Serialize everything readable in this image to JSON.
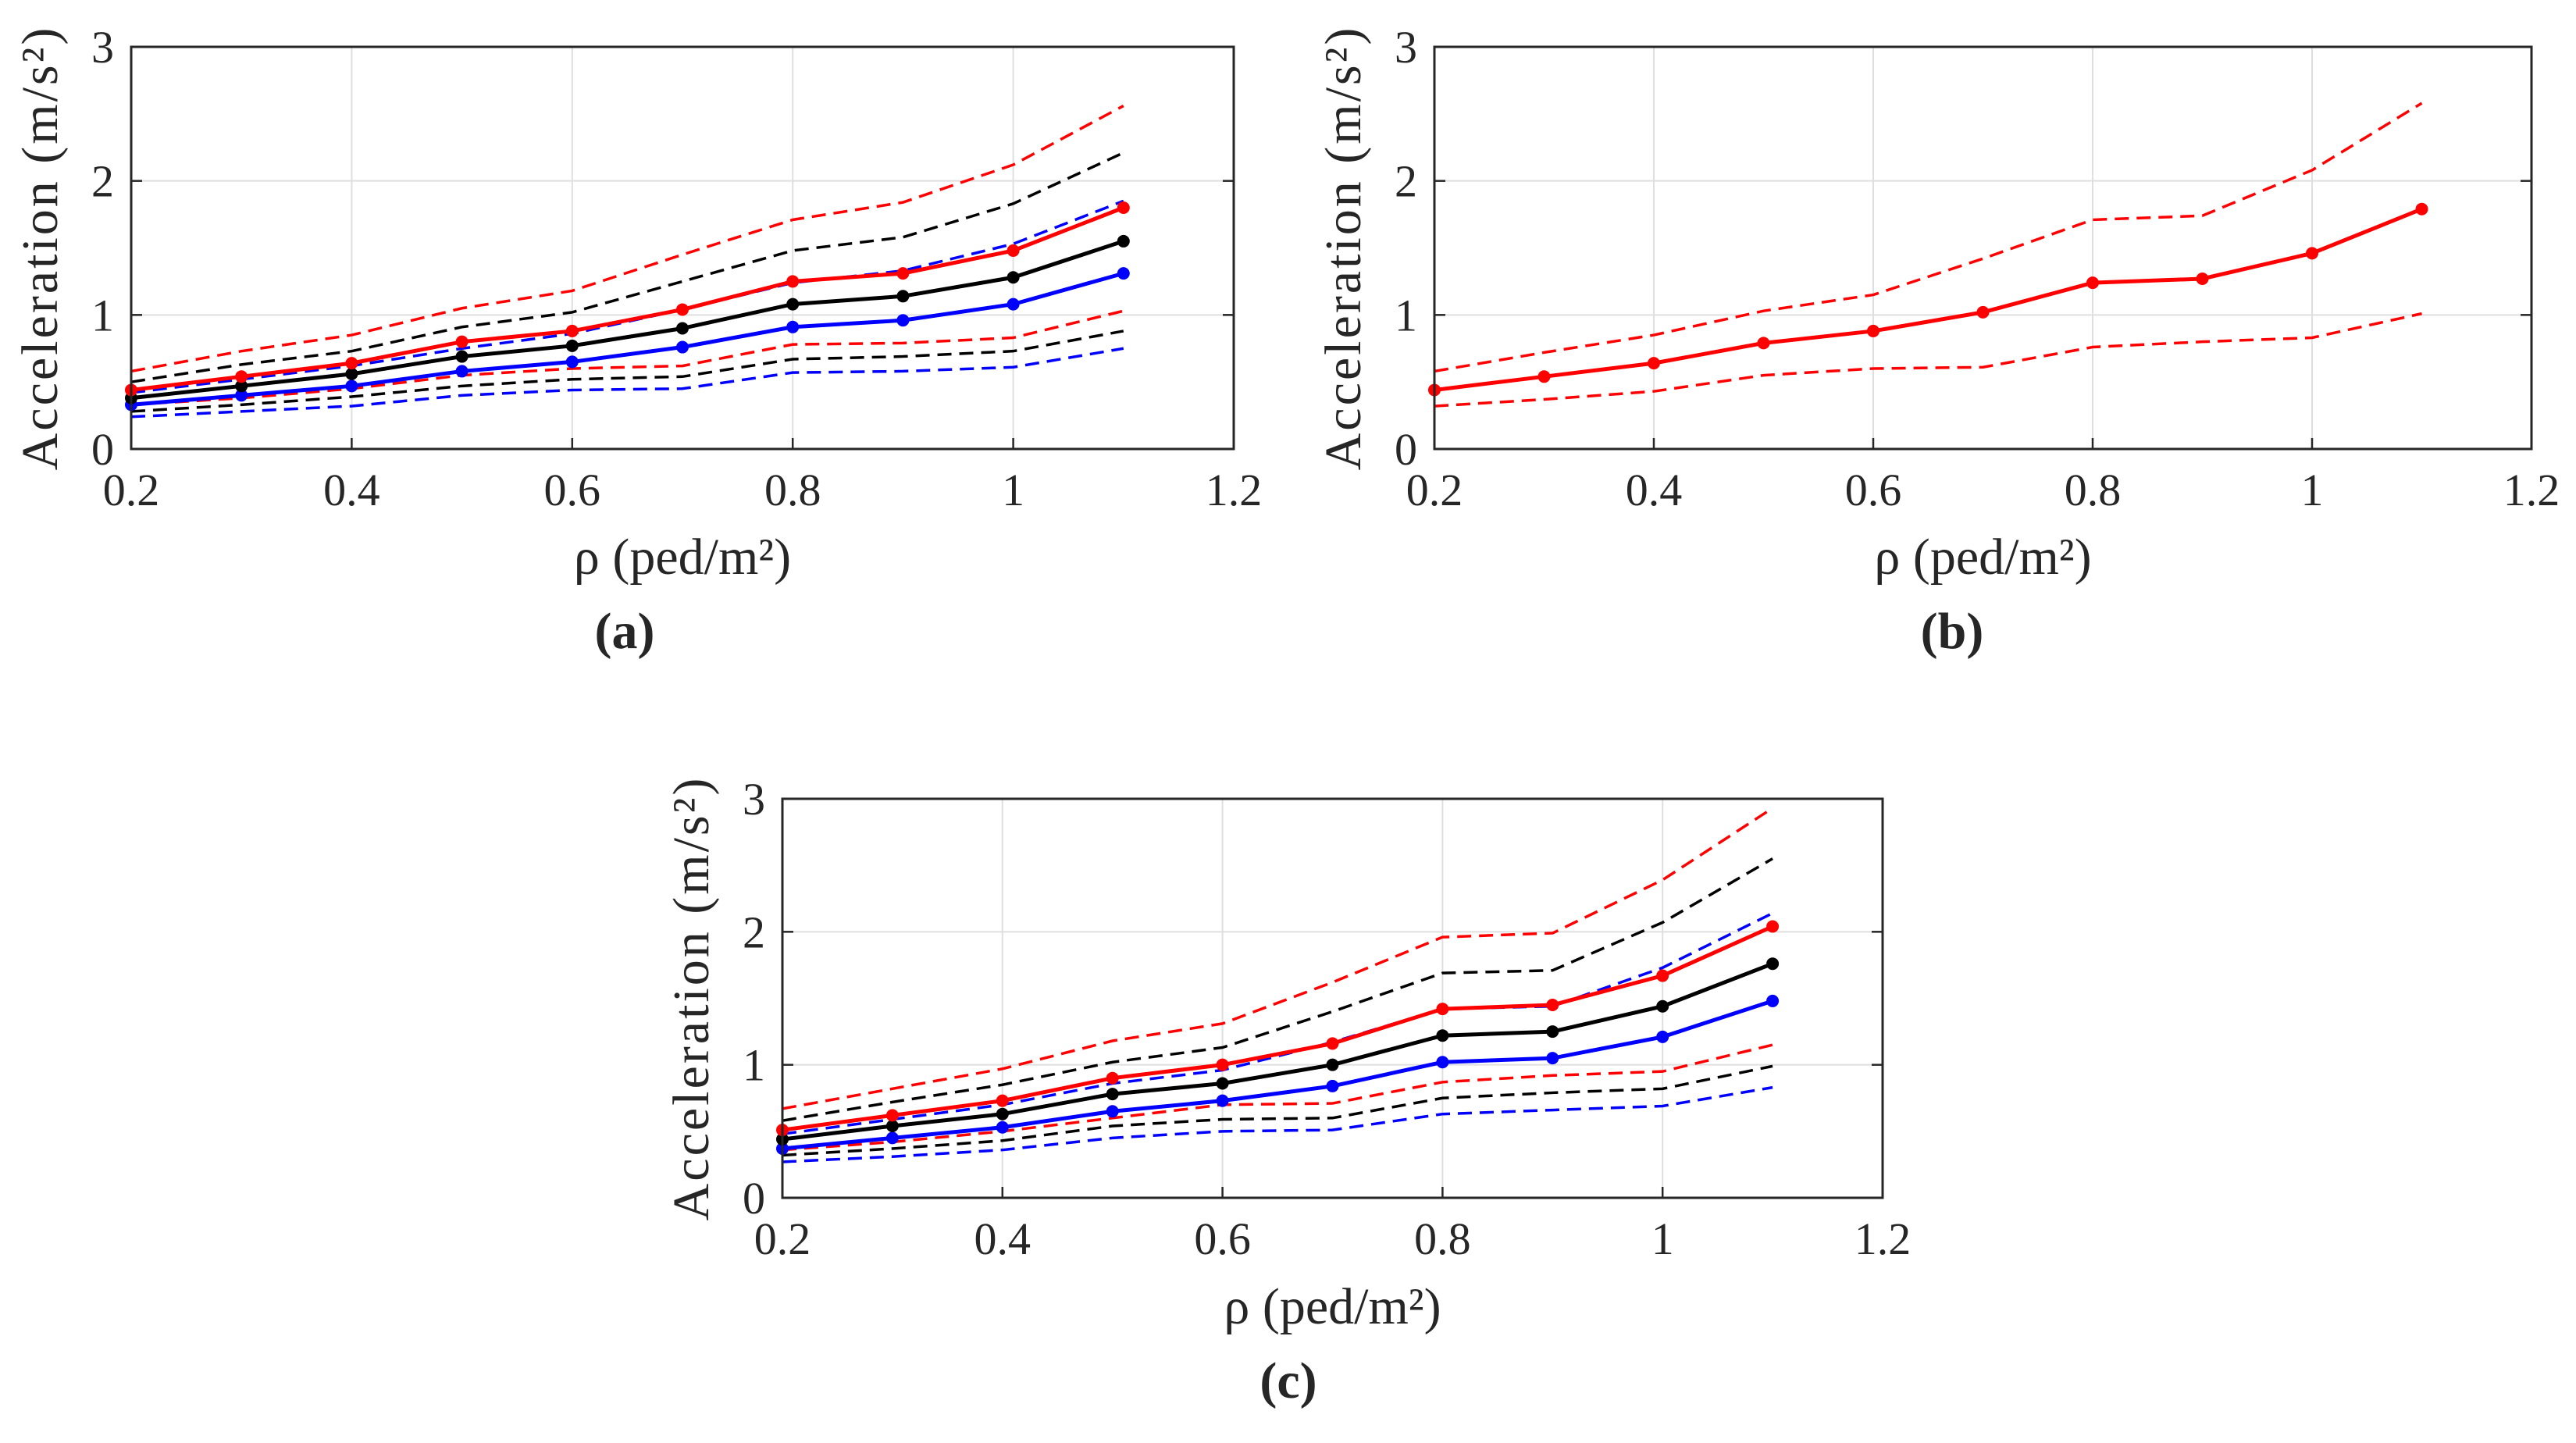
{
  "chart_data": [
    {
      "type": "line",
      "panel_label": "(a)",
      "xlabel": "ρ (ped/m²)",
      "ylabel": "Acceleration (m/s²)",
      "xlim": [
        0.2,
        1.2
      ],
      "ylim": [
        0,
        3
      ],
      "xticks": [
        "0.2",
        "0.4",
        "0.6",
        "0.8",
        "1",
        "1.2"
      ],
      "yticks": [
        "0",
        "1",
        "2",
        "3"
      ],
      "grid": true,
      "x": [
        0.2,
        0.3,
        0.4,
        0.5,
        0.6,
        0.7,
        0.8,
        0.9,
        1.0,
        1.1
      ],
      "series": [
        {
          "name": "red-upper",
          "color": "#ff0000",
          "style": "dashed",
          "values": [
            0.58,
            0.73,
            0.85,
            1.05,
            1.18,
            1.45,
            1.71,
            1.84,
            2.12,
            2.56
          ]
        },
        {
          "name": "black-upper",
          "color": "#000000",
          "style": "dashed",
          "values": [
            0.5,
            0.63,
            0.73,
            0.91,
            1.02,
            1.25,
            1.48,
            1.58,
            1.83,
            2.21
          ]
        },
        {
          "name": "blue-upper",
          "color": "#0000ff",
          "style": "dashed",
          "values": [
            0.42,
            0.52,
            0.62,
            0.75,
            0.86,
            1.04,
            1.24,
            1.33,
            1.53,
            1.85
          ]
        },
        {
          "name": "red-lower",
          "color": "#ff0000",
          "style": "dashed",
          "values": [
            0.33,
            0.38,
            0.45,
            0.55,
            0.6,
            0.62,
            0.78,
            0.79,
            0.83,
            1.03
          ]
        },
        {
          "name": "black-lower",
          "color": "#000000",
          "style": "dashed",
          "values": [
            0.28,
            0.33,
            0.39,
            0.47,
            0.52,
            0.54,
            0.67,
            0.69,
            0.73,
            0.88
          ]
        },
        {
          "name": "blue-lower",
          "color": "#0000ff",
          "style": "dashed",
          "values": [
            0.24,
            0.28,
            0.32,
            0.4,
            0.44,
            0.45,
            0.57,
            0.58,
            0.61,
            0.75
          ]
        },
        {
          "name": "blue-mean",
          "color": "#0000ff",
          "style": "solid",
          "values": [
            0.33,
            0.4,
            0.47,
            0.58,
            0.65,
            0.76,
            0.91,
            0.96,
            1.08,
            1.31
          ]
        },
        {
          "name": "black-mean",
          "color": "#000000",
          "style": "solid",
          "values": [
            0.38,
            0.47,
            0.56,
            0.69,
            0.77,
            0.9,
            1.08,
            1.14,
            1.28,
            1.55
          ]
        },
        {
          "name": "red-mean",
          "color": "#ff0000",
          "style": "solid",
          "values": [
            0.44,
            0.54,
            0.64,
            0.8,
            0.88,
            1.04,
            1.25,
            1.31,
            1.48,
            1.8
          ]
        }
      ]
    },
    {
      "type": "line",
      "panel_label": "(b)",
      "xlabel": "ρ (ped/m²)",
      "ylabel": "Acceleration (m/s²)",
      "xlim": [
        0.2,
        1.2
      ],
      "ylim": [
        0,
        3
      ],
      "xticks": [
        "0.2",
        "0.4",
        "0.6",
        "0.8",
        "1",
        "1.2"
      ],
      "yticks": [
        "0",
        "1",
        "2",
        "3"
      ],
      "grid": true,
      "x": [
        0.2,
        0.3,
        0.4,
        0.5,
        0.6,
        0.7,
        0.8,
        0.9,
        1.0,
        1.1
      ],
      "series": [
        {
          "name": "red-upper",
          "color": "#ff0000",
          "style": "dashed",
          "values": [
            0.58,
            0.72,
            0.85,
            1.03,
            1.15,
            1.42,
            1.71,
            1.74,
            2.08,
            2.58
          ]
        },
        {
          "name": "red-lower",
          "color": "#ff0000",
          "style": "dashed",
          "values": [
            0.32,
            0.37,
            0.43,
            0.55,
            0.6,
            0.61,
            0.76,
            0.8,
            0.83,
            1.01
          ]
        },
        {
          "name": "red-mean",
          "color": "#ff0000",
          "style": "solid",
          "values": [
            0.44,
            0.54,
            0.64,
            0.79,
            0.88,
            1.02,
            1.24,
            1.27,
            1.46,
            1.79
          ]
        }
      ]
    },
    {
      "type": "line",
      "panel_label": "(c)",
      "xlabel": "ρ (ped/m²)",
      "ylabel": "Acceleration (m/s²)",
      "xlim": [
        0.2,
        1.2
      ],
      "ylim": [
        0,
        3
      ],
      "xticks": [
        "0.2",
        "0.4",
        "0.6",
        "0.8",
        "1",
        "1.2"
      ],
      "yticks": [
        "0",
        "1",
        "2",
        "3"
      ],
      "grid": true,
      "x": [
        0.2,
        0.3,
        0.4,
        0.5,
        0.6,
        0.7,
        0.8,
        0.9,
        1.0,
        1.1
      ],
      "series": [
        {
          "name": "red-upper",
          "color": "#ff0000",
          "style": "dashed",
          "values": [
            0.67,
            0.82,
            0.97,
            1.18,
            1.31,
            1.62,
            1.96,
            1.99,
            2.39,
            2.93
          ]
        },
        {
          "name": "black-upper",
          "color": "#000000",
          "style": "dashed",
          "values": [
            0.58,
            0.72,
            0.85,
            1.02,
            1.13,
            1.4,
            1.69,
            1.71,
            2.07,
            2.55
          ]
        },
        {
          "name": "blue-upper",
          "color": "#0000ff",
          "style": "dashed",
          "values": [
            0.48,
            0.59,
            0.7,
            0.86,
            0.96,
            1.17,
            1.42,
            1.44,
            1.73,
            2.14
          ]
        },
        {
          "name": "red-lower",
          "color": "#ff0000",
          "style": "dashed",
          "values": [
            0.36,
            0.42,
            0.5,
            0.6,
            0.7,
            0.71,
            0.87,
            0.92,
            0.95,
            1.15
          ]
        },
        {
          "name": "black-lower",
          "color": "#000000",
          "style": "dashed",
          "values": [
            0.32,
            0.37,
            0.43,
            0.54,
            0.59,
            0.6,
            0.75,
            0.79,
            0.82,
            0.99
          ]
        },
        {
          "name": "blue-lower",
          "color": "#0000ff",
          "style": "dashed",
          "values": [
            0.27,
            0.31,
            0.36,
            0.45,
            0.5,
            0.51,
            0.63,
            0.66,
            0.69,
            0.83
          ]
        },
        {
          "name": "blue-mean",
          "color": "#0000ff",
          "style": "solid",
          "values": [
            0.37,
            0.45,
            0.53,
            0.65,
            0.73,
            0.84,
            1.02,
            1.05,
            1.21,
            1.48
          ]
        },
        {
          "name": "black-mean",
          "color": "#000000",
          "style": "solid",
          "values": [
            0.44,
            0.54,
            0.63,
            0.78,
            0.86,
            1.0,
            1.22,
            1.25,
            1.44,
            1.76
          ]
        },
        {
          "name": "red-mean",
          "color": "#ff0000",
          "style": "solid",
          "values": [
            0.51,
            0.62,
            0.73,
            0.9,
            1.0,
            1.16,
            1.42,
            1.45,
            1.67,
            2.04
          ]
        }
      ]
    }
  ]
}
